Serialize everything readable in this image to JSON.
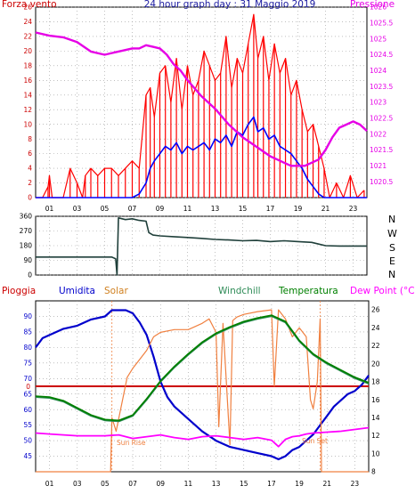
{
  "charts": {
    "wind": {
      "title": "24 hour graph day : 31 Maggio 2019",
      "left_label": "Forza vento",
      "right_label": "Pressione"
    },
    "direction": {
      "compass_labels": [
        "N",
        "W",
        "S",
        "E",
        "N"
      ]
    },
    "weather": {
      "labels": {
        "rain": "Pioggia",
        "humidity": "Umidita",
        "solar": "Solar",
        "windchill": "Windchill",
        "temperature": "Temperatura",
        "dewpoint": "Dew Point (°C)",
        "sunrise": "Sun Rise",
        "sunset": "Sun Set"
      }
    }
  },
  "colors": {
    "wind_gust": "#ff0000",
    "wind_avg": "#0000ff",
    "pressure": "#e600e6",
    "direction": "#1f3f3a",
    "rain": "#cc0000",
    "humidity": "#0000cc",
    "solar": "#f08040",
    "windchill": "#2e8b57",
    "temperature": "#008000",
    "dewpoint": "#ff00ff"
  },
  "chart_data": [
    {
      "type": "line",
      "title": "24 hour graph day : 31 Maggio 2019",
      "xlabel": "",
      "x_ticks": [
        "01",
        "03",
        "05",
        "07",
        "09",
        "11",
        "13",
        "15",
        "17",
        "19",
        "21",
        "23"
      ],
      "xlim": [
        0,
        24
      ],
      "ylabel_left": "Forza vento",
      "ylim_left": [
        0,
        26
      ],
      "yticks_left": [
        "0",
        "2",
        "4",
        "6",
        "8",
        "10",
        "12",
        "14",
        "16",
        "18",
        "20",
        "22",
        "24",
        "26"
      ],
      "ylabel_right": "Pressione",
      "ylim_right": [
        1020,
        1026
      ],
      "yticks_right": [
        "1020.5",
        "1021",
        "1021.5",
        "1022",
        "1022.5",
        "1023",
        "1023.5",
        "1024",
        "1024.5",
        "1025",
        "1025.5",
        "1026"
      ],
      "grid": true,
      "series": [
        {
          "name": "Forza vento",
          "axis": "left",
          "color": "#ff0000",
          "x": [
            0,
            0.5,
            0.9,
            1.0,
            1.2,
            1.5,
            2,
            2.5,
            3,
            3.4,
            3.6,
            4,
            4.5,
            5,
            5.5,
            6,
            6.5,
            7,
            7.5,
            8,
            8.3,
            8.6,
            9,
            9.4,
            9.8,
            10.2,
            10.6,
            11,
            11.4,
            11.8,
            12.2,
            12.6,
            13,
            13.4,
            13.8,
            14.2,
            14.6,
            15,
            15.4,
            15.8,
            16.1,
            16.5,
            16.9,
            17.3,
            17.7,
            18.1,
            18.5,
            18.9,
            19.3,
            19.7,
            20.1,
            20.5,
            20.9,
            21.3,
            21.8,
            22.3,
            22.8,
            23.3,
            23.8
          ],
          "values": [
            0,
            0,
            1.5,
            3,
            0,
            0,
            0,
            4,
            2,
            0,
            3,
            4,
            3,
            4,
            4,
            3,
            4,
            5,
            4,
            14,
            15,
            11,
            17,
            18,
            13,
            19,
            12,
            18,
            14,
            16,
            20,
            18,
            16,
            17,
            22,
            15,
            19,
            17,
            21,
            25,
            19,
            22,
            16,
            21,
            17,
            19,
            14,
            16,
            12,
            9,
            10,
            7,
            4,
            0,
            2,
            0,
            3,
            0,
            1
          ]
        },
        {
          "name": "",
          "axis": "left",
          "color": "#0000ff",
          "x": [
            0,
            2,
            4,
            5,
            6,
            7,
            7.5,
            8,
            8.3,
            8.6,
            9,
            9.4,
            9.8,
            10.2,
            10.6,
            11,
            11.4,
            11.8,
            12.2,
            12.6,
            13,
            13.4,
            13.8,
            14.2,
            14.6,
            15,
            15.4,
            15.8,
            16.1,
            16.5,
            16.9,
            17.3,
            17.7,
            18.1,
            18.5,
            18.9,
            19.3,
            19.7,
            20.1,
            20.5,
            20.9,
            21.3,
            22,
            23,
            24
          ],
          "values": [
            0,
            0,
            0,
            0,
            0,
            0,
            0.5,
            2,
            4,
            5,
            6,
            7,
            6.5,
            7.5,
            6,
            7,
            6.5,
            7,
            7.5,
            6.5,
            8,
            7.5,
            8.5,
            7,
            9,
            8.5,
            10,
            11,
            9,
            9.5,
            8,
            8.5,
            7,
            6.5,
            6,
            5,
            4,
            2.5,
            1.5,
            0.5,
            0,
            0,
            0,
            0,
            0
          ]
        },
        {
          "name": "Pressione",
          "axis": "right",
          "color": "#e600e6",
          "x": [
            0,
            1,
            2,
            3,
            4,
            5,
            6,
            7,
            7.5,
            8,
            8.5,
            9,
            9.5,
            10,
            10.5,
            11,
            12,
            13,
            14,
            15,
            16,
            17,
            17.5,
            18,
            18.5,
            19,
            19.5,
            20,
            20.5,
            21,
            21.5,
            22,
            22.5,
            23,
            23.5,
            24
          ],
          "values": [
            1025.2,
            1025.1,
            1025.05,
            1024.9,
            1024.6,
            1024.5,
            1024.6,
            1024.7,
            1024.7,
            1024.8,
            1024.75,
            1024.7,
            1024.5,
            1024.2,
            1024.0,
            1023.7,
            1023.2,
            1022.8,
            1022.3,
            1021.9,
            1021.6,
            1021.3,
            1021.2,
            1021.1,
            1021.0,
            1021.0,
            1021.0,
            1021.1,
            1021.2,
            1021.5,
            1021.9,
            1022.2,
            1022.3,
            1022.4,
            1022.3,
            1022.1
          ]
        }
      ]
    },
    {
      "type": "line",
      "xlim": [
        0,
        24
      ],
      "ylim": [
        0,
        360
      ],
      "yticks": [
        "0",
        "90",
        "180",
        "270",
        "360"
      ],
      "grid": true,
      "series": [
        {
          "name": "",
          "color": "#1f3f3a",
          "x": [
            0,
            2,
            4,
            5.5,
            5.8,
            5.9,
            6.0,
            6.5,
            7,
            7.5,
            8,
            8.2,
            8.5,
            9,
            10,
            11,
            12,
            13,
            14,
            15,
            16,
            17,
            18,
            19,
            20,
            20.5,
            21,
            22,
            23,
            24
          ],
          "values": [
            110,
            110,
            110,
            110,
            100,
            0,
            350,
            340,
            345,
            335,
            330,
            260,
            245,
            240,
            235,
            230,
            225,
            218,
            215,
            210,
            212,
            205,
            210,
            205,
            200,
            190,
            180,
            178,
            178,
            178
          ]
        }
      ]
    },
    {
      "type": "line",
      "xlim": [
        0,
        24
      ],
      "x_ticks": [
        "01",
        "03",
        "05",
        "07",
        "09",
        "11",
        "13",
        "15",
        "17",
        "19",
        "21",
        "23"
      ],
      "ylabel_left": "Umidita",
      "ylim_left": [
        40,
        95
      ],
      "yticks_left": [
        "45",
        "50",
        "55",
        "60",
        "65",
        "70",
        "75",
        "80",
        "85",
        "90"
      ],
      "ylabel_right": "Dew Point (°C)",
      "ylim_right": [
        8,
        27
      ],
      "yticks_right": [
        "8",
        "10",
        "12",
        "14",
        "16",
        "18",
        "20",
        "22",
        "24",
        "26"
      ],
      "rain_axis_label": "0",
      "grid": true,
      "events": [
        {
          "label": "Sun Rise",
          "x": 5.5
        },
        {
          "label": "Sun Set",
          "x": 20.5
        }
      ],
      "series": [
        {
          "name": "Pioggia",
          "axis": "rain",
          "color": "#cc0000",
          "x": [
            0,
            24
          ],
          "values": [
            0,
            0
          ]
        },
        {
          "name": "Umidita",
          "axis": "left",
          "color": "#0000cc",
          "x": [
            0,
            0.5,
            1,
            2,
            3,
            4,
            5,
            5.5,
            6,
            6.5,
            7,
            7.5,
            8,
            8.5,
            9,
            9.5,
            10,
            11,
            12,
            13,
            14,
            15,
            16,
            17,
            17.5,
            18,
            18.5,
            19,
            19.5,
            20,
            20.5,
            21,
            21.5,
            22,
            22.5,
            23,
            23.5,
            24
          ],
          "values": [
            80,
            83,
            84,
            86,
            87,
            89,
            90,
            92,
            92,
            92,
            91,
            88,
            84,
            77,
            69,
            64,
            61,
            57,
            53,
            50,
            48,
            47,
            46,
            45,
            44,
            45,
            47,
            48,
            50,
            52,
            55,
            58,
            61,
            63,
            65,
            66,
            68,
            71
          ]
        },
        {
          "name": "Solar",
          "axis": "right",
          "color": "#f08040",
          "x": [
            0,
            5.4,
            5.5,
            5.8,
            6.2,
            6.6,
            7,
            7.5,
            8,
            8.5,
            9,
            10,
            11,
            12,
            12.5,
            13,
            13.2,
            13.5,
            14,
            14.2,
            14.5,
            15,
            16,
            17,
            17.2,
            17.5,
            18,
            18.5,
            19,
            19.5,
            19.8,
            20,
            20.3,
            20.5,
            20.6,
            21,
            24
          ],
          "values": [
            8,
            8,
            14,
            12.5,
            15.5,
            18.5,
            19.5,
            20.5,
            21.5,
            23,
            23.5,
            23.8,
            23.8,
            24.5,
            25,
            23.5,
            13,
            24.5,
            11,
            24.8,
            25.2,
            25.5,
            25.8,
            26,
            17.5,
            26,
            25,
            23,
            24,
            23,
            16,
            15,
            18,
            25,
            8,
            8,
            8
          ]
        },
        {
          "name": "Windchill",
          "axis": "right",
          "color": "#2e8b57",
          "x": [
            0,
            1,
            2,
            3,
            4,
            5,
            6,
            7,
            8,
            9,
            10,
            11,
            12,
            13,
            14,
            15,
            16,
            17,
            18,
            19,
            20,
            21,
            22,
            23,
            24
          ],
          "values": [
            16.3,
            16.2,
            15.8,
            15.0,
            14.2,
            13.7,
            13.6,
            14.2,
            16.0,
            18.0,
            19.6,
            21.0,
            22.3,
            23.3,
            24.0,
            24.6,
            25.0,
            25.3,
            24.6,
            22.5,
            21.0,
            20.0,
            19.2,
            18.4,
            17.8
          ]
        },
        {
          "name": "Temperatura",
          "axis": "right",
          "color": "#008000",
          "x": [
            0,
            1,
            2,
            3,
            4,
            5,
            6,
            7,
            8,
            9,
            10,
            11,
            12,
            13,
            14,
            15,
            16,
            17,
            18,
            19,
            20,
            21,
            22,
            23,
            24
          ],
          "values": [
            16.4,
            16.3,
            15.9,
            15.1,
            14.3,
            13.8,
            13.7,
            14.3,
            16.1,
            18.1,
            19.7,
            21.1,
            22.4,
            23.4,
            24.1,
            24.7,
            25.1,
            25.4,
            24.7,
            22.6,
            21.1,
            20.1,
            19.3,
            18.5,
            17.9
          ]
        },
        {
          "name": "Dew Point (°C)",
          "axis": "right",
          "color": "#ff00ff",
          "x": [
            0,
            1,
            2,
            3,
            4,
            5,
            6,
            6.5,
            7,
            8,
            9,
            10,
            11,
            12,
            13,
            14,
            15,
            16,
            17,
            17.5,
            18,
            18.5,
            19,
            19.5,
            20,
            21,
            22,
            23,
            24
          ],
          "values": [
            12.3,
            12.2,
            12.1,
            12.0,
            12.0,
            12.0,
            12.1,
            11.9,
            11.7,
            11.9,
            12.1,
            11.8,
            11.6,
            11.9,
            12.0,
            11.8,
            11.6,
            11.8,
            11.5,
            10.8,
            11.6,
            11.9,
            12.0,
            12.2,
            12.3,
            12.4,
            12.5,
            12.7,
            12.9
          ]
        }
      ]
    }
  ]
}
